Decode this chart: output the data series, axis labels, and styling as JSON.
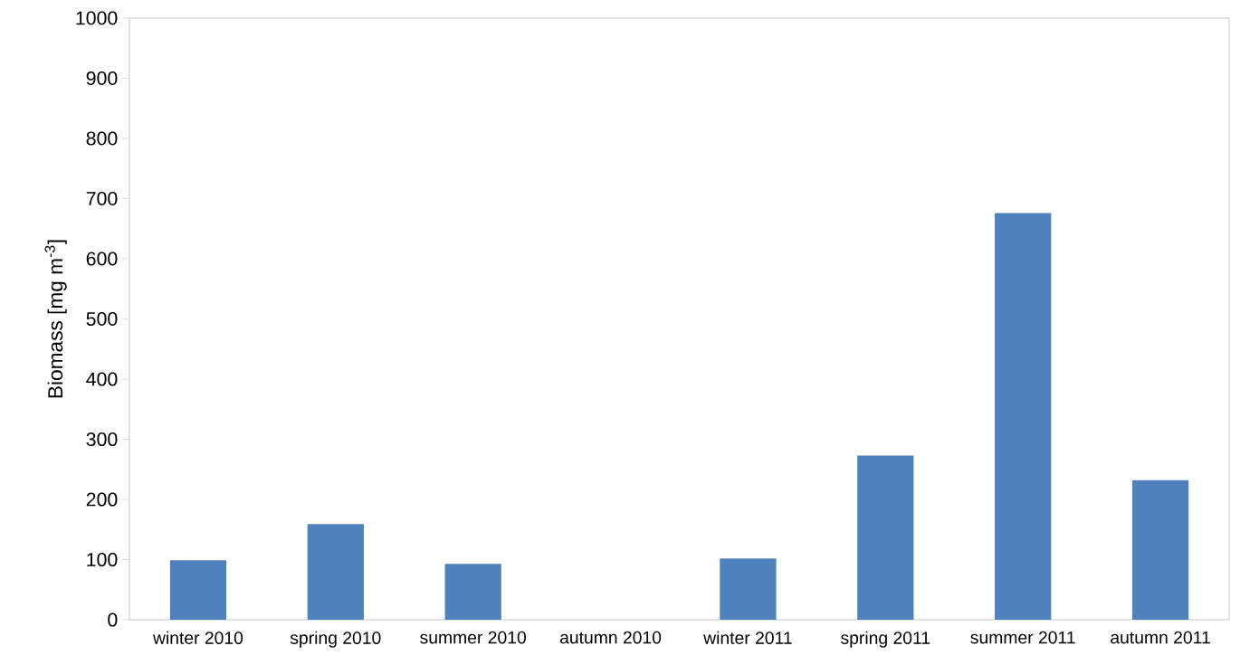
{
  "chart_data": {
    "type": "bar",
    "ylabel": "Biomass [mg m$^{-3}$]",
    "categories": [
      "winter 2010",
      "spring 2010",
      "summer 2010",
      "autumn 2010",
      "winter 2011",
      "spring 2011",
      "summer 2011",
      "autumn 2011"
    ],
    "values": [
      99,
      159,
      93,
      null,
      102,
      273,
      676,
      232
    ],
    "color": "#4f81bd",
    "ylim": [
      0,
      1000
    ],
    "yticks": [
      0,
      100,
      200,
      300,
      400,
      500,
      600,
      700,
      800,
      900,
      1000
    ],
    "grid": false
  }
}
